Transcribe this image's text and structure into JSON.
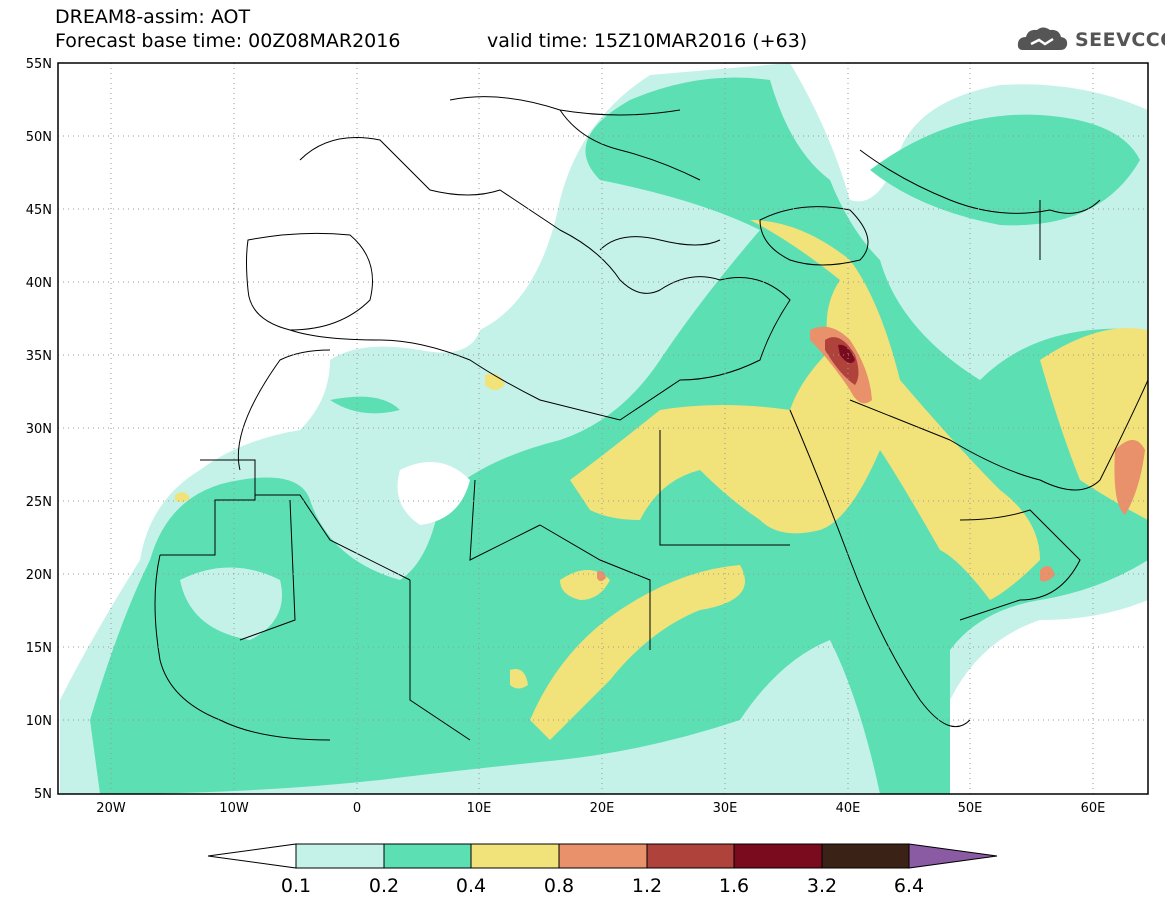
{
  "header": {
    "line1": "DREAM8-assim: AOT",
    "line2": "Forecast base time: 00Z08MAR2016",
    "valid": "valid time: 15Z10MAR2016 (+63)",
    "logo_text": "SEEVCCC",
    "logo_icon": "cloud-icon"
  },
  "map": {
    "lat_labels": [
      "55N",
      "50N",
      "45N",
      "40N",
      "35N",
      "30N",
      "25N",
      "20N",
      "15N",
      "10N",
      "5N"
    ],
    "lon_labels": [
      "20W",
      "10W",
      "0",
      "10E",
      "20E",
      "30E",
      "40E",
      "50E",
      "60E"
    ],
    "lon_range": [
      -25,
      65
    ],
    "lat_range": [
      5,
      55
    ]
  },
  "colorbar": {
    "levels": [
      "0.1",
      "0.2",
      "0.4",
      "0.8",
      "1.2",
      "1.6",
      "3.2",
      "6.4"
    ],
    "colors": [
      "#ffffff",
      "#c5f2e8",
      "#5ddfb4",
      "#f2e27a",
      "#e8916a",
      "#b0423c",
      "#7a0a1e",
      "#3a2316",
      "#8a5aa3"
    ]
  }
}
